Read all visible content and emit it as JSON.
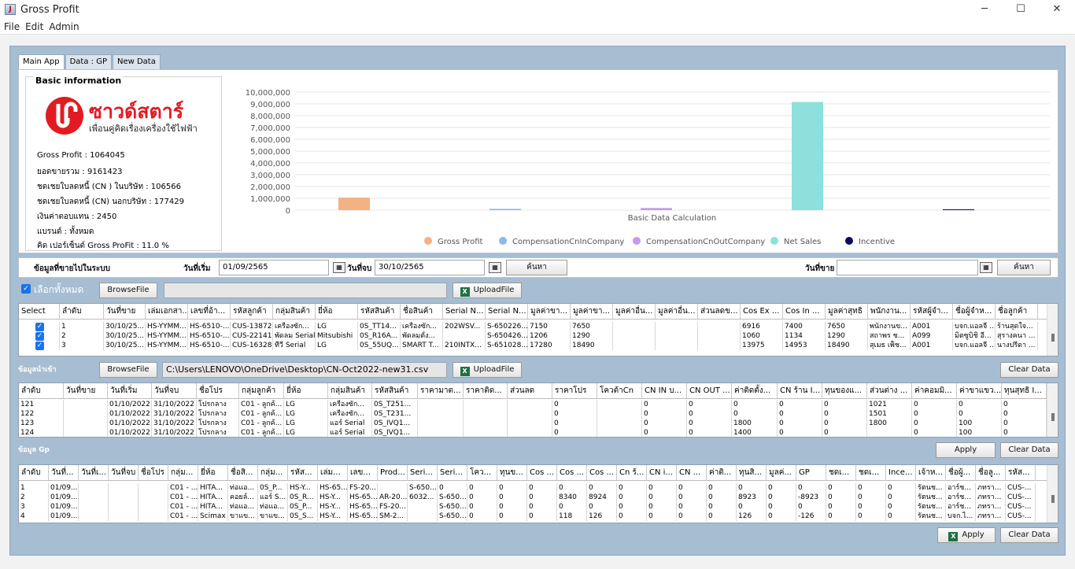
{
  "window": {
    "title": "Gross Profit",
    "min": "─",
    "max": "☐",
    "close": "✕"
  },
  "menu": [
    "File",
    "Edit",
    "Admin"
  ],
  "tabs": [
    "Main App",
    "Data : GP",
    "New Data"
  ],
  "basic": {
    "title": "Basic information",
    "logo_text": "ซาวด์สตาร์",
    "logo_sub": "เพื่อนคู่คิดเรื่องเครื่องใช้ไฟฟ้า",
    "rows": [
      "Gross Profit :        1064045",
      "ยอดขายรวม  :  9161423",
      "ชดเชยใบลดหนี้ (CN ) ในบริษัท :    106566",
      "ชดเชยใบลดหนี้ (CN) นอกบริษัท :  177429",
      "เงินค่าตอบแทน :   2450",
      "แบรนด์ :  ทั้งหมด",
      "คิด เปอร์เซ็นต์  Gross ProFit :  11.0  %"
    ]
  },
  "chart_data": {
    "type": "bar",
    "xlabel": "Basic Data Calculation",
    "ylim": [
      0,
      10000000
    ],
    "yticks": [
      "0",
      "1,000,000",
      "2,000,000",
      "3,000,000",
      "4,000,000",
      "5,000,000",
      "6,000,000",
      "7,000,000",
      "8,000,000",
      "9,000,000",
      "10,000,000"
    ],
    "legend_position": "bottom",
    "series": [
      {
        "name": "Gross Profit",
        "value": 1064045,
        "color": "#f4b183"
      },
      {
        "name": "CompensationCnInCompany",
        "value": 106566,
        "color": "#8fb8e8"
      },
      {
        "name": "CompensationCnOutCompany",
        "value": 177429,
        "color": "#c39bea"
      },
      {
        "name": "Net Sales",
        "value": 9161423,
        "color": "#8de0dc"
      },
      {
        "name": "Incentive",
        "value": 2450,
        "color": "#0b0b5e"
      }
    ]
  },
  "filter": {
    "title": "ข้อมูลที่ขายไปในระบบ",
    "start_label": "วันที่เริ่ม",
    "start_value": "01/09/2565",
    "end_label": "วันที่จบ",
    "end_value": "30/10/2565",
    "search": "ค้นหา",
    "sale_label": "วันที่ขาย",
    "sale_value": "",
    "search2": "ค้นหา"
  },
  "upload1": {
    "select_all": "เลือกทั้งหมด",
    "browse": "BrowseFile",
    "path": "",
    "upload": "UploadFile"
  },
  "table1": {
    "headers": [
      "Select",
      "ลำดับ",
      "วันที่ขาย",
      "เล่มเอกสา...",
      "เลขที่อ้า...",
      "รหัสลูกค้า",
      "กลุ่มสินค้า",
      "ยี่ห้อ",
      "รหัสสินค้า",
      "ชื่อสินค้า",
      "Serial N...",
      "Serial N...",
      "มูลค่าขา...",
      "มูลค่าขา...",
      "มูลค่าอื่น...",
      "มูลค่าอื่น...",
      "ส่วนลดข...",
      "Cos Ex ...",
      "Cos In ...",
      "มูลค่าสุทธิ",
      "พนักงาน...",
      "รหัสผู้จำ...",
      "ชื่อผู้จำห...",
      "ชื่อลูกค้า"
    ],
    "rows": [
      [
        "✓",
        "1",
        "30/10/25...",
        "HS-YYMM...",
        "HS-6510-...",
        "CUS-13872",
        "เครื่องซัก...",
        "LG",
        "0S_TT14...",
        "เครื่องซัก...",
        "202WSV...",
        "S-650226...",
        "7150",
        "7650",
        "",
        "",
        "",
        "6916",
        "7400",
        "7650",
        "พนักงานข...",
        "A001",
        "บจก.แอลจี ...",
        "ร้านสุดใจ..."
      ],
      [
        "✓",
        "2",
        "30/10/25...",
        "HS-YYMM...",
        "HS-6510-...",
        "CUS-22141",
        "พัดลม Serial",
        "Mitsubishi",
        "0S_R16A...",
        "พัดลมตั้ง...",
        "",
        "S-650426...",
        "1206",
        "1290",
        "",
        "",
        "",
        "1060",
        "1134",
        "1290",
        "สถาพร ช...",
        "A099",
        "มิตซูบิชิ อี...",
        "สุรางคนา ..."
      ],
      [
        "✓",
        "3",
        "30/10/25...",
        "HS-YYMM...",
        "HS-6510-...",
        "CUS-16328",
        "ทีวี Serial",
        "LG",
        "0S_55UQ...",
        "SMART T...",
        "210INTX...",
        "S-651028...",
        "17280",
        "18490",
        "",
        "",
        "",
        "13975",
        "14953",
        "18490",
        "สุเมธ เพ็ช...",
        "A001",
        "บจก.แอลจี ...",
        "นางปรีดา ..."
      ]
    ]
  },
  "upload2": {
    "title": "ข้อมูลนำเข้า",
    "browse": "BrowseFile",
    "path": "C:\\Users\\LENOVO\\OneDrive\\Desktop\\CN-Oct2022-new31.csv",
    "upload": "UploadFile",
    "clear": "Clear Data"
  },
  "table2": {
    "headers": [
      "ลำดับ",
      "วันที่ขาย",
      "วันที่เริ่ม",
      "วันที่จบ",
      "ชื่อโปร",
      "กลุ่มลูกค้า",
      "ยี่ห้อ",
      "กลุ่มสินค้า",
      "รหัสสินค้า",
      "ราคามาต...",
      "ราคาติด...",
      "ส่วนลด",
      "ราคาโปร",
      "โควต้าCn",
      "CN IN บ...",
      "CN OUT ...",
      "ค่าติดตั้ง...",
      "CN ร้าน I...",
      "ทุนของแ...",
      "ส่วนต่าง ...",
      "ค่าคอมมิ...",
      "ค่าขาแขว...",
      "ทุนสุทธิ I..."
    ],
    "rows": [
      [
        "121",
        "",
        "01/10/2022",
        "31/10/2022",
        "โปรกลาง",
        "C01 - ลูกค้...",
        "LG",
        "เครื่องซัก...",
        "0S_T251...",
        "",
        "",
        "",
        "0",
        "",
        "0",
        "0",
        "0",
        "0",
        "0",
        "1021",
        "0",
        "0",
        "0"
      ],
      [
        "122",
        "",
        "01/10/2022",
        "31/10/2022",
        "โปรกลาง",
        "C01 - ลูกค้...",
        "LG",
        "เครื่องซัก...",
        "0S_T231...",
        "",
        "",
        "",
        "0",
        "",
        "0",
        "0",
        "0",
        "0",
        "0",
        "1501",
        "0",
        "0",
        "0"
      ],
      [
        "123",
        "",
        "01/10/2022",
        "31/10/2022",
        "โปรกลาง",
        "C01 - ลูกค้...",
        "LG",
        "แอร์ Serial",
        "0S_IVQ1...",
        "",
        "",
        "",
        "0",
        "",
        "0",
        "0",
        "1800",
        "0",
        "0",
        "1800",
        "0",
        "100",
        "0"
      ],
      [
        "124",
        "",
        "01/10/2022",
        "31/10/2022",
        "โปรกลาง",
        "C01 - ลูกค้...",
        "LG",
        "แอร์ Serial",
        "0S_IVQ1...",
        "",
        "",
        "",
        "0",
        "",
        "0",
        "0",
        "1400",
        "0",
        "0",
        "",
        "0",
        "100",
        "0"
      ]
    ]
  },
  "gp": {
    "title": "ข้อมูล Gp",
    "apply": "Apply",
    "clear": "Clear Data"
  },
  "table3": {
    "headers": [
      "ลำดับ",
      "วันที่...",
      "วันที่เ...",
      "วันที่จบ",
      "ชื่อโปร",
      "กลุ่ม...",
      "ยี่ห้อ",
      "ชื่อสิ...",
      "กลุ่ม...",
      "รหัส...",
      "เล่ม...",
      "เลข...",
      "Prod...",
      "Seri...",
      "Seri...",
      "โคว...",
      "ทุนข...",
      "Cos ...",
      "Cos ...",
      "Cos ...",
      "Cn ร้...",
      "CN i...",
      "CN ...",
      "ค่าติ...",
      "ทุนสิ...",
      "มูลค่...",
      "GP",
      "ชดเ...",
      "ชดเ...",
      "Ince...",
      "เจ้าห...",
      "ชื่อผู้...",
      "ชื่อลู...",
      "รหัส..."
    ],
    "rows": [
      [
        "1",
        "01/09...",
        "",
        "",
        "",
        "C01 - ...",
        "HITA...",
        "ท่อแอ...",
        "0S_P...",
        "HS-Y...",
        "HS-65...",
        "FS-20...",
        "",
        "S-650...",
        "0",
        "0",
        "0",
        "0",
        "0",
        "0",
        "0",
        "0",
        "0",
        "0",
        "0",
        "0",
        "0",
        "0",
        "0",
        "0",
        "รัตนช...",
        "อาร์ช...",
        "ภทรา...",
        "CUS-..."
      ],
      [
        "2",
        "01/09...",
        "",
        "",
        "",
        "C01 - ...",
        "HITA...",
        "คอยล์...",
        "แอร์ S...",
        "0S_R...",
        "HS-Y...",
        "HS-65...",
        "AR-20...",
        "6032...",
        "S-650...",
        "0",
        "0",
        "0",
        "8340",
        "8924",
        "0",
        "0",
        "0",
        "0",
        "8923",
        "0",
        "-8923",
        "0",
        "0",
        "0",
        "รัตนช...",
        "อาร์ช...",
        "ภทรา...",
        "CUS-..."
      ],
      [
        "3",
        "01/09...",
        "",
        "",
        "",
        "C01 - ...",
        "HITA...",
        "ท่อแอ...",
        "ท่อแอ...",
        "0S_P...",
        "HS-Y...",
        "HS-65...",
        "FS-20...",
        "",
        "S-650...",
        "0",
        "0",
        "0",
        "0",
        "0",
        "0",
        "0",
        "0",
        "0",
        "0",
        "0",
        "0",
        "0",
        "0",
        "0",
        "รัตนช...",
        "อาร์ช...",
        "ภทรา...",
        "CUS-..."
      ],
      [
        "4",
        "01/09...",
        "",
        "",
        "",
        "C01 - ...",
        "Scimax",
        "ขาแข...",
        "ขาแข...",
        "0S_S...",
        "HS-Y...",
        "HS-65...",
        "SM-2...",
        "",
        "S-650...",
        "0",
        "0",
        "0",
        "118",
        "126",
        "0",
        "0",
        "0",
        "0",
        "126",
        "0",
        "-126",
        "0",
        "0",
        "0",
        "รัตนช...",
        "บจก.ไ...",
        "ภทรา...",
        "CUS-..."
      ]
    ]
  },
  "bottom": {
    "apply": "Apply",
    "clear": "Clear Data"
  }
}
